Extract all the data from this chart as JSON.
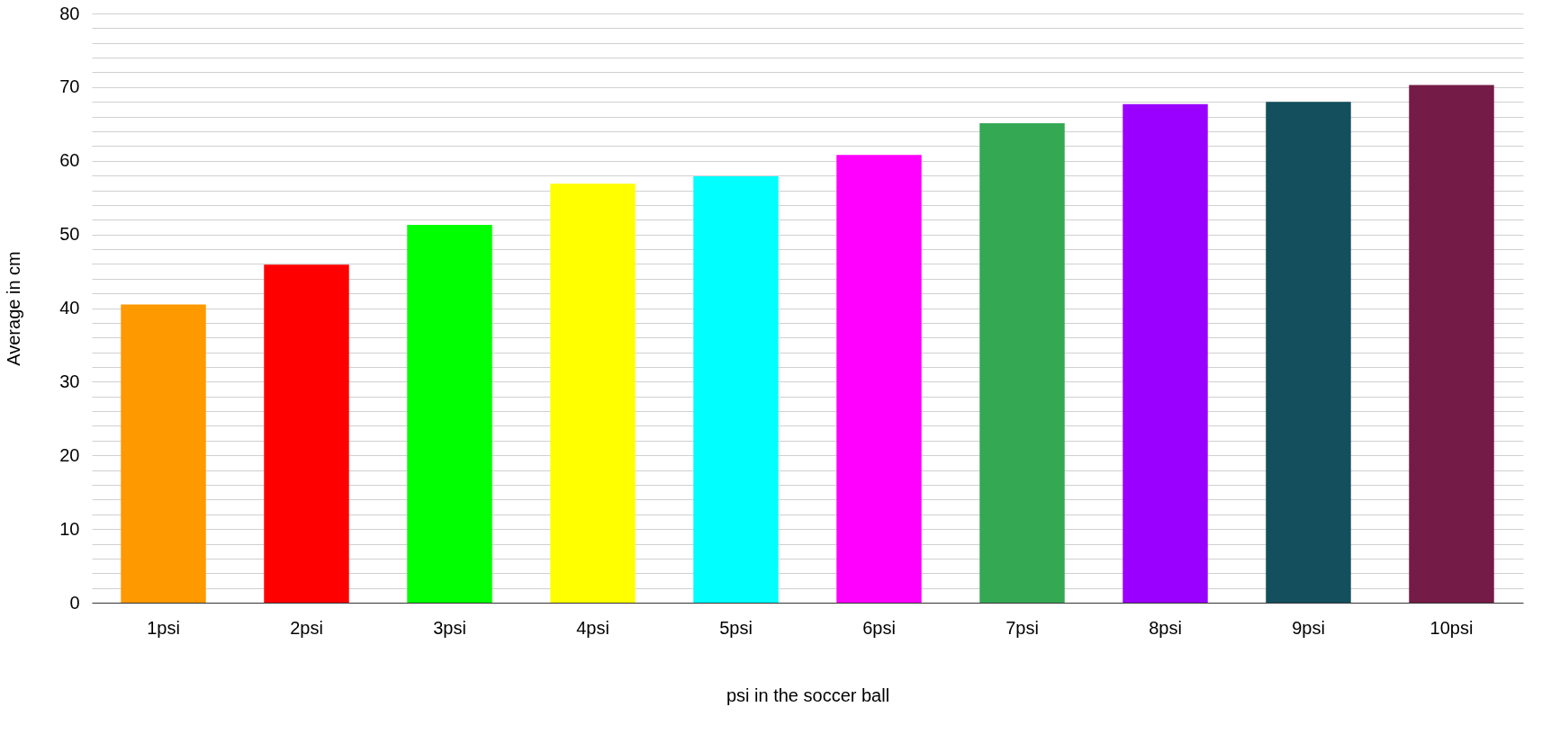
{
  "chart_data": {
    "type": "bar",
    "xlabel": "psi in the soccer ball",
    "ylabel": "Average in cm",
    "categories": [
      "1psi",
      "2psi",
      "3psi",
      "4psi",
      "5psi",
      "6psi",
      "7psi",
      "8psi",
      "9psi",
      "10psi"
    ],
    "values": [
      40.5,
      45.9,
      51.3,
      56.9,
      57.9,
      60.8,
      65.1,
      67.7,
      68,
      70.3
    ],
    "colors": [
      "#ff9900",
      "#ff0000",
      "#00ff00",
      "#ffff00",
      "#00ffff",
      "#ff00ff",
      "#34a853",
      "#9900ff",
      "#134f5c",
      "#741b47"
    ],
    "ylim": [
      0,
      80
    ],
    "yticks": [
      0,
      {
        "value": 2,
        "label": null
      },
      {
        "value": 4,
        "label": null
      },
      {
        "value": 6,
        "label": null
      },
      {
        "value": 8,
        "label": null
      },
      10,
      {
        "value": 12,
        "label": null
      },
      {
        "value": 14,
        "label": null
      },
      {
        "value": 16,
        "label": null
      },
      {
        "value": 18,
        "label": null
      },
      20,
      {
        "value": 22,
        "label": null
      },
      {
        "value": 24,
        "label": null
      },
      {
        "value": 26,
        "label": null
      },
      {
        "value": 28,
        "label": null
      },
      30,
      {
        "value": 32,
        "label": null
      },
      {
        "value": 34,
        "label": null
      },
      {
        "value": 36,
        "label": null
      },
      {
        "value": 38,
        "label": null
      },
      40,
      {
        "value": 42,
        "label": null
      },
      {
        "value": 44,
        "label": null
      },
      {
        "value": 46,
        "label": null
      },
      {
        "value": 48,
        "label": null
      },
      50,
      {
        "value": 52,
        "label": null
      },
      {
        "value": 54,
        "label": null
      },
      {
        "value": 56,
        "label": null
      },
      {
        "value": 58,
        "label": null
      },
      60,
      {
        "value": 62,
        "label": null
      },
      {
        "value": 64,
        "label": null
      },
      {
        "value": 66,
        "label": null
      },
      {
        "value": 68,
        "label": null
      },
      70,
      {
        "value": 72,
        "label": null
      },
      {
        "value": 74,
        "label": null
      },
      {
        "value": 76,
        "label": null
      },
      {
        "value": 78,
        "label": null
      },
      80
    ],
    "grid": "y"
  }
}
